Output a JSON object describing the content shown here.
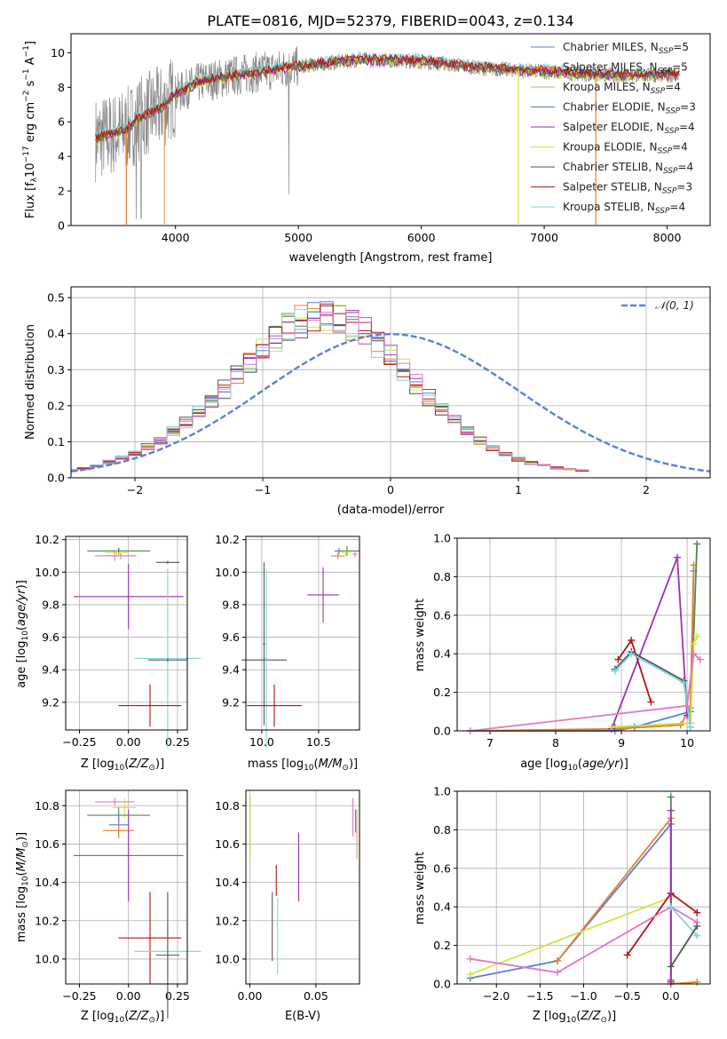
{
  "title": "PLATE=0816, MJD=52379, FIBERID=0043, z=0.134",
  "colors": {
    "Chabrier MILES": "#5b7fdc",
    "Salpeter MILES": "#e8822a",
    "Kroupa MILES": "#d9a456",
    "Chabrier ELODIE": "#4f8a4f",
    "Salpeter ELODIE": "#9b30b8",
    "Kroupa ELODIE": "#cfe24a",
    "Chabrier STELIB": "#555555",
    "Salpeter STELIB": "#b01515",
    "Kroupa STELIB": "#7fd4dc",
    "histpink": "#e377c2"
  },
  "chart_data": [
    {
      "type": "line",
      "xlabel": "wavelength [Angstrom, rest frame]",
      "ylabel": "Flux [f_λ10^-17 erg cm^-2 s^-1 A^-1]",
      "xlim": [
        3150,
        8350
      ],
      "ylim": [
        0,
        11.1
      ],
      "xticks": [
        "4000",
        "5000",
        "6000",
        "7000",
        "8000"
      ],
      "yticks": [
        "0",
        "2",
        "4",
        "6",
        "8",
        "10"
      ],
      "grid": false,
      "legend_position": "right",
      "series": [
        {
          "name": "Chabrier MILES, N_SSP=5"
        },
        {
          "name": "Salpeter MILES, N_SSP=5"
        },
        {
          "name": "Kroupa MILES, N_SSP=4"
        },
        {
          "name": "Chabrier ELODIE, N_SSP=3"
        },
        {
          "name": "Salpeter ELODIE, N_SSP=4"
        },
        {
          "name": "Kroupa ELODIE, N_SSP=4"
        },
        {
          "name": "Chabrier STELIB, N_SSP=4"
        },
        {
          "name": "Salpeter STELIB, N_SSP=3"
        },
        {
          "name": "Kroupa STELIB, N_SSP=4"
        }
      ],
      "continuum": {
        "x": [
          3350,
          3600,
          3700,
          3900,
          4000,
          4200,
          4500,
          5000,
          5500,
          6000,
          6500,
          7000,
          7500,
          8100
        ],
        "y": [
          5.0,
          5.5,
          6.2,
          6.9,
          7.6,
          8.3,
          8.7,
          9.2,
          9.6,
          9.5,
          9.1,
          8.9,
          8.7,
          8.7
        ]
      }
    },
    {
      "type": "bar",
      "xlabel": "(data-model)/error",
      "ylabel": "Normed distribution",
      "xlim": [
        -2.5,
        2.5
      ],
      "ylim": [
        0,
        0.53
      ],
      "xticks": [
        "−2",
        "−1",
        "0",
        "1",
        "2"
      ],
      "yticks": [
        "0.0",
        "0.1",
        "0.2",
        "0.3",
        "0.4",
        "0.5"
      ],
      "grid": true,
      "legend_position": "top-right",
      "legend": "N(0,1)",
      "bin_width": 0.1,
      "histogram": [
        0.021,
        0.025,
        0.033,
        0.044,
        0.055,
        0.069,
        0.086,
        0.105,
        0.128,
        0.153,
        0.181,
        0.212,
        0.245,
        0.28,
        0.315,
        0.35,
        0.383,
        0.412,
        0.433,
        0.447,
        0.45,
        0.444,
        0.428,
        0.404,
        0.373,
        0.338,
        0.3,
        0.262,
        0.224,
        0.189,
        0.157,
        0.129,
        0.104,
        0.083,
        0.066,
        0.052,
        0.041,
        0.033,
        0.027,
        0.023,
        0.02
      ],
      "histogram_start": -2.55,
      "gaussian_dashed": true
    },
    {
      "type": "scatter",
      "xlabel": "Z [log10(Z/Z⊙)]",
      "ylabel": "age [log10(age/yr)]",
      "xlim": [
        -0.32,
        0.3
      ],
      "ylim": [
        9.03,
        10.22
      ],
      "xticks": [
        "−0.25",
        "0.00",
        "0.25"
      ],
      "yticks": [
        "9.2",
        "9.4",
        "9.6",
        "9.8",
        "10.0",
        "10.2"
      ],
      "errorbars": [
        {
          "name": "Chabrier MILES",
          "x": -0.05,
          "xerr": 0.05,
          "y": 10.13,
          "yerr": 0.02
        },
        {
          "name": "Salpeter MILES",
          "x": -0.04,
          "xerr": 0.08,
          "y": 10.1,
          "yerr": 0.02
        },
        {
          "name": "Chabrier ELODIE",
          "x": -0.05,
          "xerr": 0.16,
          "y": 10.13,
          "yerr": 0.02
        },
        {
          "name": "Kroupa ELODIE",
          "x": -0.06,
          "xerr": 0.06,
          "y": 10.12,
          "yerr": 0.02
        },
        {
          "name": "histpink",
          "x": -0.07,
          "xerr": 0.1,
          "y": 10.1,
          "yerr": 0.03
        },
        {
          "name": "Salpeter ELODIE",
          "x": 0.0,
          "xerr": 0.28,
          "y": 9.85,
          "yerr": 0.2
        },
        {
          "name": "Chabrier STELIB",
          "x": 0.2,
          "xerr": 0.06,
          "y": 10.06,
          "yerr": 0.01
        },
        {
          "name": "Kroupa STELIB",
          "x": 0.2,
          "xerr": 0.17,
          "y": 9.47,
          "yerr": 0.55
        },
        {
          "name": "Chabrier STELIB",
          "x": 0.2,
          "xerr": 0.1,
          "y": 9.46,
          "yerr": 0.01
        },
        {
          "name": "Salpeter STELIB",
          "x": 0.11,
          "xerr": 0.16,
          "y": 9.18,
          "yerr": 0.13
        }
      ]
    },
    {
      "type": "scatter",
      "xlabel": "mass [log10(M/M⊙)]",
      "ylabel": "",
      "xlim": [
        9.86,
        10.86
      ],
      "ylim": [
        9.03,
        10.22
      ],
      "xticks": [
        "10.0",
        "10.5"
      ],
      "yticks": [
        "9.2",
        "9.4",
        "9.6",
        "9.8",
        "10.0",
        "10.2"
      ],
      "errorbars": [
        {
          "name": "Chabrier MILES",
          "x": 10.68,
          "xerr": 0.04,
          "y": 10.13,
          "yerr": 0.02
        },
        {
          "name": "Salpeter MILES",
          "x": 10.67,
          "xerr": 0.06,
          "y": 10.1,
          "yerr": 0.02
        },
        {
          "name": "Chabrier ELODIE",
          "x": 10.75,
          "xerr": 0.11,
          "y": 10.13,
          "yerr": 0.03
        },
        {
          "name": "Kroupa ELODIE",
          "x": 10.74,
          "xerr": 0.04,
          "y": 10.12,
          "yerr": 0.02
        },
        {
          "name": "histpink",
          "x": 10.82,
          "xerr": 0.02,
          "y": 10.11,
          "yerr": 0.02
        },
        {
          "name": "Salpeter ELODIE",
          "x": 10.54,
          "xerr": 0.14,
          "y": 9.86,
          "yerr": 0.17
        },
        {
          "name": "Chabrier STELIB",
          "x": 10.02,
          "xerr": 0.2,
          "y": 9.46,
          "yerr": 0.01
        },
        {
          "name": "Kroupa STELIB",
          "x": 10.04,
          "xerr": 0.01,
          "y": 9.47,
          "yerr": 0.55
        },
        {
          "name": "Chabrier STELIB",
          "x": 10.02,
          "xerr": 0.01,
          "y": 9.56,
          "yerr": 0.5
        },
        {
          "name": "Salpeter STELIB",
          "x": 10.11,
          "xerr": 0.24,
          "y": 9.18,
          "yerr": 0.13
        }
      ]
    },
    {
      "type": "line",
      "xlabel": "age [log10(age/yr)]",
      "ylabel": "mass weight",
      "xlim": [
        6.5,
        10.35
      ],
      "ylim": [
        0,
        1.0
      ],
      "xticks": [
        "7",
        "8",
        "9",
        "10"
      ],
      "yticks": [
        "0.0",
        "0.2",
        "0.4",
        "0.6",
        "0.8",
        "1.0"
      ],
      "grid": true,
      "series": [
        {
          "name": "Chabrier MILES",
          "x": [
            6.7,
            8.9,
            9.2,
            10.05,
            10.1
          ],
          "y": [
            0.0,
            0.0,
            0.02,
            0.1,
            0.83
          ]
        },
        {
          "name": "Salpeter MILES",
          "x": [
            6.7,
            8.9,
            9.9,
            10.05,
            10.1
          ],
          "y": [
            0.0,
            0.01,
            0.03,
            0.12,
            0.86
          ]
        },
        {
          "name": "Chabrier ELODIE",
          "x": [
            8.9,
            10.05,
            10.15
          ],
          "y": [
            0.02,
            0.04,
            0.97
          ]
        },
        {
          "name": "Salpeter ELODIE",
          "x": [
            8.85,
            9.85,
            10.0
          ],
          "y": [
            0.01,
            0.9,
            0.08
          ]
        },
        {
          "name": "Kroupa ELODIE",
          "x": [
            8.85,
            10.05,
            10.1,
            10.15
          ],
          "y": [
            0.02,
            0.04,
            0.45,
            0.49
          ]
        },
        {
          "name": "Salpeter STELIB",
          "x": [
            8.95,
            9.15,
            9.45
          ],
          "y": [
            0.37,
            0.47,
            0.15
          ]
        },
        {
          "name": "Chabrier STELIB",
          "x": [
            8.9,
            9.15,
            9.95,
            10.05
          ],
          "y": [
            0.32,
            0.41,
            0.26,
            0.02
          ]
        },
        {
          "name": "Kroupa STELIB",
          "x": [
            8.9,
            9.15,
            9.95,
            10.05
          ],
          "y": [
            0.31,
            0.4,
            0.25,
            0.02
          ]
        },
        {
          "name": "histpink",
          "x": [
            6.7,
            10.0,
            10.1,
            10.2
          ],
          "y": [
            0.0,
            0.13,
            0.4,
            0.37
          ]
        }
      ]
    },
    {
      "type": "scatter",
      "xlabel": "Z [log10(Z/Z⊙)]",
      "ylabel": "mass [log10(M/M⊙)]",
      "xlim": [
        -0.32,
        0.3
      ],
      "ylim": [
        9.87,
        10.88
      ],
      "xticks": [
        "−0.25",
        "0.00",
        "0.25"
      ],
      "yticks": [
        "10.0",
        "10.2",
        "10.4",
        "10.6",
        "10.8"
      ],
      "errorbars": [
        {
          "name": "histpink",
          "x": -0.07,
          "xerr": 0.1,
          "y": 10.82,
          "yerr": 0.02
        },
        {
          "name": "Kroupa ELODIE",
          "x": -0.02,
          "xerr": 0.06,
          "y": 10.79,
          "yerr": 0.05
        },
        {
          "name": "Chabrier ELODIE",
          "x": -0.05,
          "xerr": 0.16,
          "y": 10.75,
          "yerr": 0.04
        },
        {
          "name": "Chabrier MILES",
          "x": -0.05,
          "xerr": 0.05,
          "y": 10.7,
          "yerr": 0.06
        },
        {
          "name": "Salpeter MILES",
          "x": -0.05,
          "xerr": 0.08,
          "y": 10.67,
          "yerr": 0.04
        },
        {
          "name": "Salpeter ELODIE",
          "x": 0.0,
          "xerr": 0.28,
          "y": 10.54,
          "yerr": 0.24
        },
        {
          "name": "Salpeter STELIB",
          "x": 0.11,
          "xerr": 0.16,
          "y": 10.11,
          "yerr": 0.24
        },
        {
          "name": "Kroupa STELIB",
          "x": 0.2,
          "xerr": 0.17,
          "y": 10.04,
          "yerr": 0.14
        },
        {
          "name": "Chabrier STELIB",
          "x": 0.2,
          "xerr": 0.06,
          "y": 10.02,
          "yerr": 0.33
        }
      ]
    },
    {
      "type": "scatter",
      "xlabel": "E(B-V)",
      "ylabel": "",
      "xlim": [
        -0.003,
        0.083
      ],
      "ylim": [
        9.87,
        10.88
      ],
      "xticks": [
        "0.00",
        "0.05"
      ],
      "yticks": [
        "10.0",
        "10.2",
        "10.4",
        "10.6",
        "10.8"
      ],
      "errorbars": [
        {
          "name": "Kroupa ELODIE",
          "x": 0.0003,
          "y": 10.69,
          "yerr": 0.16
        },
        {
          "name": "Chabrier STELIB",
          "x": 0.017,
          "y": 10.17,
          "yerr": 0.18
        },
        {
          "name": "Salpeter STELIB",
          "x": 0.02,
          "y": 10.41,
          "yerr": 0.08
        },
        {
          "name": "Kroupa STELIB",
          "x": 0.021,
          "y": 10.12,
          "yerr": 0.2
        },
        {
          "name": "Salpeter ELODIE",
          "x": 0.037,
          "y": 10.48,
          "yerr": 0.18
        },
        {
          "name": "histpink",
          "x": 0.078,
          "y": 10.74,
          "yerr": 0.1
        },
        {
          "name": "Kroupa MILES",
          "x": 0.081,
          "y": 10.65,
          "yerr": 0.13
        },
        {
          "name": "Chabrier MILES",
          "x": 0.08,
          "y": 10.72,
          "yerr": 0.06
        }
      ]
    },
    {
      "type": "line",
      "xlabel": "Z [log10(Z/Z⊙)]",
      "ylabel": "mass weight",
      "xlim": [
        -2.45,
        0.45
      ],
      "ylim": [
        0,
        1.0
      ],
      "xticks": [
        "−2.0",
        "−1.5",
        "−1.0",
        "−0.5",
        "0.0"
      ],
      "yticks": [
        "0.0",
        "0.2",
        "0.4",
        "0.6",
        "0.8",
        "1.0"
      ],
      "grid": true,
      "series": [
        {
          "name": "Chabrier MILES",
          "x": [
            -2.3,
            -1.3,
            0.0,
            0.0
          ],
          "y": [
            0.03,
            0.12,
            0.83,
            0.01
          ]
        },
        {
          "name": "Salpeter MILES",
          "x": [
            -1.3,
            0.0,
            0.0,
            0.3
          ],
          "y": [
            0.12,
            0.86,
            0.0,
            0.01
          ]
        },
        {
          "name": "Kroupa ELODIE",
          "x": [
            -2.3,
            0.0,
            0.0
          ],
          "y": [
            0.05,
            0.45,
            0.02
          ]
        },
        {
          "name": "Salpeter STELIB",
          "x": [
            -0.5,
            0.0,
            0.3
          ],
          "y": [
            0.15,
            0.47,
            0.37
          ]
        },
        {
          "name": "histpink",
          "x": [
            -2.3,
            -1.3,
            0.0,
            0.3
          ],
          "y": [
            0.13,
            0.06,
            0.4,
            0.32
          ]
        },
        {
          "name": "Chabrier ELODIE",
          "x": [
            0.0,
            0.0
          ],
          "y": [
            0.02,
            0.97
          ]
        },
        {
          "name": "Salpeter ELODIE",
          "x": [
            0.0,
            0.0
          ],
          "y": [
            0.01,
            0.9
          ]
        },
        {
          "name": "Kroupa STELIB",
          "x": [
            0.0,
            0.3
          ],
          "y": [
            0.4,
            0.25
          ]
        },
        {
          "name": "Chabrier STELIB",
          "x": [
            0.0,
            0.3
          ],
          "y": [
            0.09,
            0.3
          ]
        }
      ]
    }
  ]
}
